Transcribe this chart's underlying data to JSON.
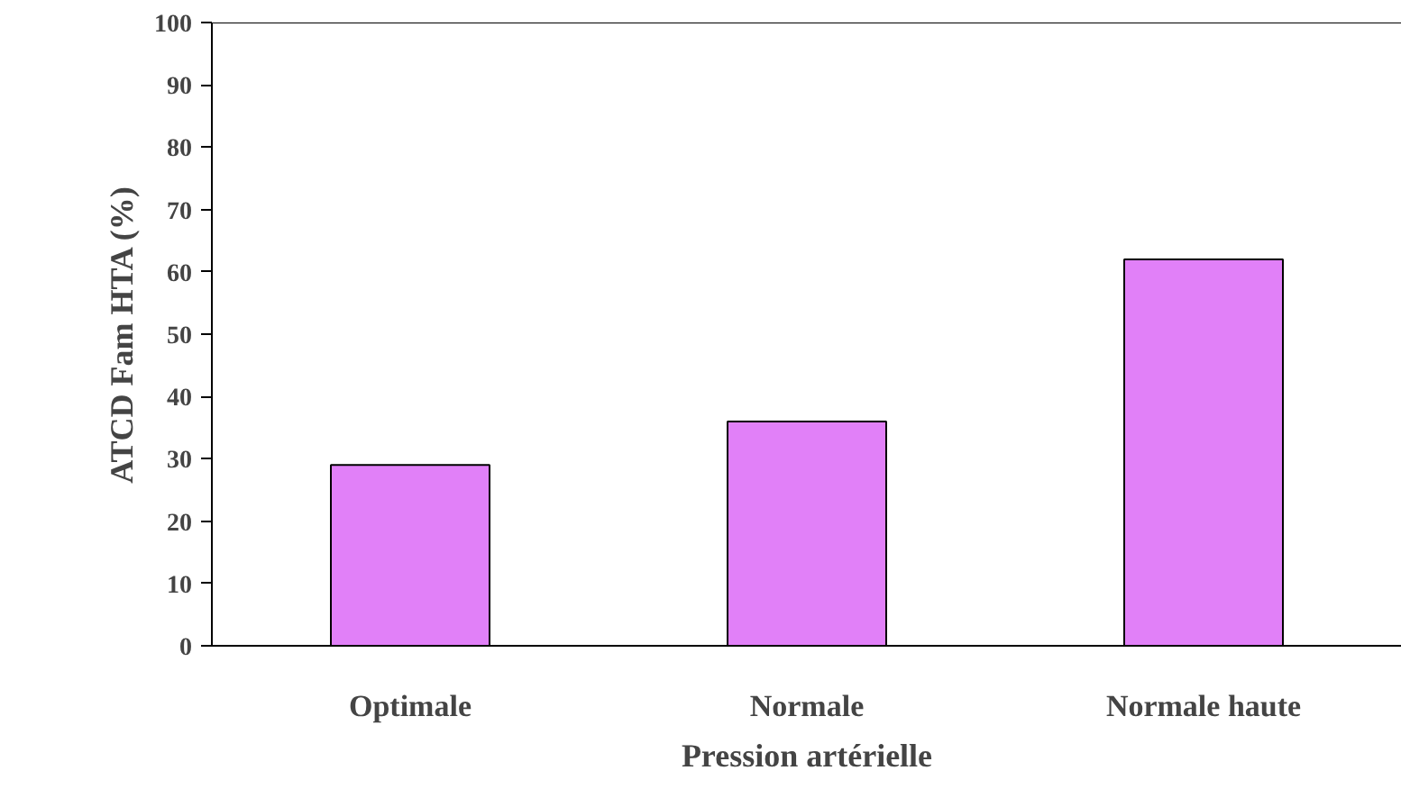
{
  "chart_data": {
    "type": "bar",
    "xlabel": "Pression artérielle",
    "ylabel": "ATCD Fam HTA (%)",
    "categories": [
      "Optimale",
      "Normale",
      "Normale haute"
    ],
    "values": [
      29,
      36,
      62
    ],
    "color": "#e180f8",
    "ylim": [
      0,
      100
    ],
    "yticks": [
      0,
      10,
      20,
      30,
      40,
      50,
      60,
      70,
      80,
      90,
      100
    ],
    "grid": false
  }
}
